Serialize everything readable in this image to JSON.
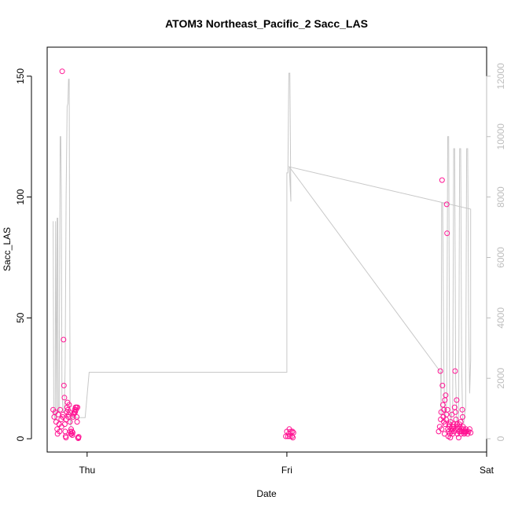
{
  "chart_data": {
    "type": "scatter",
    "title": "ATOM3 Northeast_Pacific_2 Sacc_LAS",
    "xlabel": "Date",
    "ylabel": "Sacc_LAS",
    "x_ticks": [
      "Thu",
      "Fri",
      "Sat"
    ],
    "x_range_days": [
      -0.2,
      2.0
    ],
    "y_left": {
      "range": [
        -5.5,
        162
      ],
      "ticks": [
        0,
        50,
        100,
        150
      ]
    },
    "y_right": {
      "range": [
        -440,
        12960
      ],
      "ticks": [
        0,
        2000,
        4000,
        6000,
        8000,
        10000,
        12000
      ]
    },
    "colors": {
      "points": "#ff1493",
      "line": "#c8c8c8"
    },
    "grid": false,
    "legend": "none",
    "series": [
      {
        "axis": "left",
        "style": "points",
        "points": [
          [
            -0.17,
            12
          ],
          [
            -0.165,
            9
          ],
          [
            -0.16,
            11
          ],
          [
            -0.155,
            7
          ],
          [
            -0.15,
            4
          ],
          [
            -0.148,
            2
          ],
          [
            -0.145,
            10
          ],
          [
            -0.14,
            6
          ],
          [
            -0.138,
            3
          ],
          [
            -0.135,
            12
          ],
          [
            -0.13,
            8
          ],
          [
            -0.128,
            5
          ],
          [
            -0.125,
            152
          ],
          [
            -0.122,
            9
          ],
          [
            -0.12,
            10
          ],
          [
            -0.118,
            41
          ],
          [
            -0.116,
            22
          ],
          [
            -0.114,
            17
          ],
          [
            -0.112,
            6
          ],
          [
            -0.11,
            3
          ],
          [
            -0.108,
            1
          ],
          [
            -0.106,
            0.5
          ],
          [
            -0.104,
            8
          ],
          [
            -0.102,
            11
          ],
          [
            -0.1,
            13
          ],
          [
            -0.098,
            15
          ],
          [
            -0.096,
            12
          ],
          [
            -0.094,
            9
          ],
          [
            -0.092,
            10
          ],
          [
            -0.09,
            14
          ],
          [
            -0.088,
            11
          ],
          [
            -0.086,
            7
          ],
          [
            -0.084,
            3
          ],
          [
            -0.082,
            2
          ],
          [
            -0.08,
            4
          ],
          [
            -0.078,
            2
          ],
          [
            -0.076,
            3
          ],
          [
            -0.074,
            1.5
          ],
          [
            -0.072,
            2.5
          ],
          [
            -0.07,
            9
          ],
          [
            -0.068,
            10
          ],
          [
            -0.066,
            10.5
          ],
          [
            -0.064,
            11
          ],
          [
            -0.062,
            12
          ],
          [
            -0.06,
            11
          ],
          [
            -0.058,
            13
          ],
          [
            -0.056,
            12
          ],
          [
            -0.054,
            13
          ],
          [
            -0.052,
            9
          ],
          [
            -0.05,
            7
          ],
          [
            -0.048,
            13
          ],
          [
            -0.046,
            0.5
          ],
          [
            -0.044,
            0.2
          ],
          [
            -0.042,
            0.8
          ],
          [
            0.995,
            1
          ],
          [
            1.0,
            3
          ],
          [
            1.005,
            1
          ],
          [
            1.01,
            2
          ],
          [
            1.012,
            4
          ],
          [
            1.015,
            1
          ],
          [
            1.02,
            3
          ],
          [
            1.025,
            1
          ],
          [
            1.028,
            3
          ],
          [
            1.03,
            0.5
          ],
          [
            1.033,
            2.5
          ],
          [
            1.76,
            3
          ],
          [
            1.765,
            5
          ],
          [
            1.768,
            28
          ],
          [
            1.77,
            8
          ],
          [
            1.772,
            11
          ],
          [
            1.775,
            4
          ],
          [
            1.777,
            107
          ],
          [
            1.779,
            22
          ],
          [
            1.781,
            14
          ],
          [
            1.783,
            9
          ],
          [
            1.785,
            7
          ],
          [
            1.787,
            12
          ],
          [
            1.789,
            2
          ],
          [
            1.791,
            16
          ],
          [
            1.793,
            6
          ],
          [
            1.795,
            18
          ],
          [
            1.797,
            8
          ],
          [
            1.799,
            10
          ],
          [
            1.8,
            97
          ],
          [
            1.802,
            85
          ],
          [
            1.804,
            12
          ],
          [
            1.806,
            4
          ],
          [
            1.808,
            1
          ],
          [
            1.81,
            3
          ],
          [
            1.812,
            6
          ],
          [
            1.814,
            5
          ],
          [
            1.816,
            2
          ],
          [
            1.818,
            0.5
          ],
          [
            1.82,
            7
          ],
          [
            1.822,
            4
          ],
          [
            1.824,
            3
          ],
          [
            1.826,
            10
          ],
          [
            1.828,
            5
          ],
          [
            1.83,
            2
          ],
          [
            1.832,
            4
          ],
          [
            1.834,
            6
          ],
          [
            1.836,
            5
          ],
          [
            1.838,
            3
          ],
          [
            1.84,
            13
          ],
          [
            1.842,
            28
          ],
          [
            1.844,
            11
          ],
          [
            1.846,
            8
          ],
          [
            1.848,
            4
          ],
          [
            1.85,
            16
          ],
          [
            1.852,
            6
          ],
          [
            1.854,
            2
          ],
          [
            1.856,
            5
          ],
          [
            1.858,
            4
          ],
          [
            1.86,
            0.5
          ],
          [
            1.862,
            3
          ],
          [
            1.864,
            6
          ],
          [
            1.866,
            5
          ],
          [
            1.868,
            3
          ],
          [
            1.87,
            7
          ],
          [
            1.872,
            2
          ],
          [
            1.874,
            4
          ],
          [
            1.876,
            3
          ],
          [
            1.878,
            12
          ],
          [
            1.88,
            9
          ],
          [
            1.882,
            5
          ],
          [
            1.884,
            3
          ],
          [
            1.886,
            4
          ],
          [
            1.888,
            2
          ],
          [
            1.89,
            3
          ],
          [
            1.892,
            2.5
          ],
          [
            1.894,
            3
          ],
          [
            1.896,
            4
          ],
          [
            1.9,
            3
          ],
          [
            1.905,
            2
          ],
          [
            1.91,
            3
          ],
          [
            1.915,
            4
          ],
          [
            1.92,
            2.5
          ]
        ]
      },
      {
        "axis": "right",
        "style": "line",
        "points": [
          [
            -0.17,
            7200
          ],
          [
            -0.167,
            900
          ],
          [
            -0.16,
            600
          ],
          [
            -0.158,
            7200
          ],
          [
            -0.152,
            600
          ],
          [
            -0.15,
            7300
          ],
          [
            -0.147,
            7300
          ],
          [
            -0.145,
            900
          ],
          [
            -0.14,
            900
          ],
          [
            -0.138,
            5000
          ],
          [
            -0.135,
            10000
          ],
          [
            -0.132,
            10000
          ],
          [
            -0.129,
            8000
          ],
          [
            -0.126,
            1500
          ],
          [
            -0.12,
            900
          ],
          [
            -0.114,
            900
          ],
          [
            -0.11,
            2500
          ],
          [
            -0.105,
            8000
          ],
          [
            -0.1,
            11000
          ],
          [
            -0.096,
            11100
          ],
          [
            -0.093,
            11900
          ],
          [
            -0.09,
            11900
          ],
          [
            -0.085,
            600
          ],
          [
            -0.082,
            400
          ],
          [
            -0.08,
            700
          ],
          [
            -0.01,
            700
          ],
          [
            0.01,
            2200
          ],
          [
            1.0,
            2200
          ],
          [
            1.0,
            8800
          ],
          [
            1.005,
            8800
          ],
          [
            1.01,
            12100
          ],
          [
            1.015,
            12100
          ],
          [
            1.02,
            7850
          ],
          [
            1.012,
            9000
          ],
          [
            1.77,
            2200
          ],
          [
            1.772,
            700
          ],
          [
            1.775,
            7800
          ],
          [
            1.78,
            7800
          ],
          [
            1.785,
            2800
          ],
          [
            1.79,
            600
          ],
          [
            1.795,
            800
          ],
          [
            1.8,
            1200
          ],
          [
            1.805,
            10000
          ],
          [
            1.81,
            10000
          ],
          [
            1.815,
            1500
          ],
          [
            1.82,
            500
          ],
          [
            1.825,
            800
          ],
          [
            1.83,
            1000
          ],
          [
            1.835,
            9600
          ],
          [
            1.84,
            9600
          ],
          [
            1.845,
            2000
          ],
          [
            1.85,
            600
          ],
          [
            1.855,
            500
          ],
          [
            1.86,
            800
          ],
          [
            1.865,
            9600
          ],
          [
            1.87,
            9600
          ],
          [
            1.875,
            2500
          ],
          [
            1.88,
            600
          ],
          [
            1.885,
            500
          ],
          [
            1.89,
            800
          ],
          [
            1.895,
            1000
          ],
          [
            1.9,
            9600
          ],
          [
            1.905,
            9600
          ],
          [
            1.91,
            4000
          ],
          [
            1.915,
            1500
          ],
          [
            1.92,
            2600
          ],
          [
            1.92,
            7600
          ],
          [
            1.012,
            9000
          ]
        ]
      }
    ]
  }
}
